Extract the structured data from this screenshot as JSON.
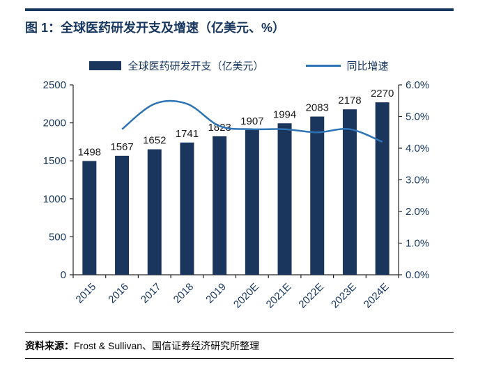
{
  "figure": {
    "title": "图 1：全球医药研发开支及增速（亿美元、%）",
    "source_label": "资料来源：",
    "source_text": "Frost & Sullivan、国信证券经济研究所整理"
  },
  "colors": {
    "bar": "#1B365D",
    "line": "#2E74B5",
    "navy_text": "#17375E",
    "data_label": "#1a1a1a",
    "axis": "#262626"
  },
  "chart_data": {
    "type": "bar",
    "title": "全球医药研发开支及增速（亿美元、%）",
    "categories": [
      "2015",
      "2016",
      "2017",
      "2018",
      "2019",
      "2020E",
      "2021E",
      "2022E",
      "2023E",
      "2024E"
    ],
    "series": [
      {
        "name": "全球医药研发开支（亿美元）",
        "type": "bar",
        "axis": "left",
        "values": [
          1498,
          1567,
          1652,
          1741,
          1823,
          1907,
          1994,
          2083,
          2178,
          2270
        ]
      },
      {
        "name": "同比增速",
        "type": "line",
        "axis": "right",
        "values": [
          null,
          4.6,
          5.4,
          5.4,
          4.7,
          4.6,
          4.6,
          4.5,
          4.6,
          4.2
        ]
      }
    ],
    "left_axis": {
      "min": 0,
      "max": 2500,
      "ticks": [
        0,
        500,
        1000,
        1500,
        2000,
        2500
      ]
    },
    "right_axis": {
      "min": 0,
      "max": 6,
      "tick_values": [
        0,
        1,
        2,
        3,
        4,
        5,
        6
      ],
      "tick_labels": [
        "0.0%",
        "1.0%",
        "2.0%",
        "3.0%",
        "4.0%",
        "5.0%",
        "6.0%"
      ]
    },
    "legend_position": "top",
    "grid": false
  }
}
